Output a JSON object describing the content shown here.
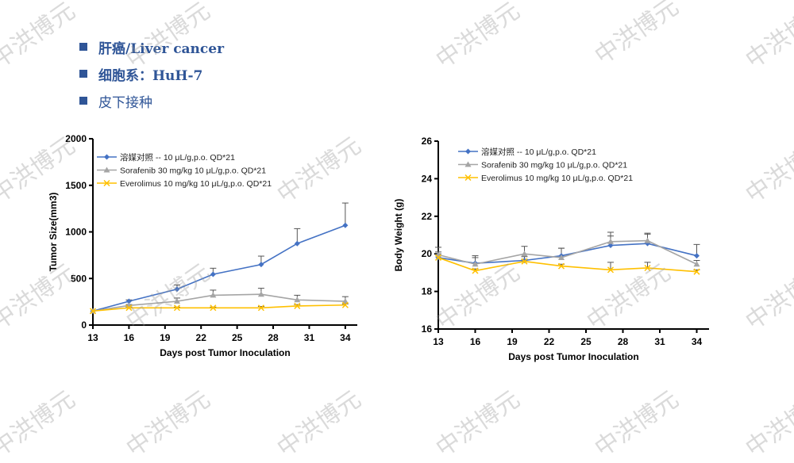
{
  "header": {
    "items": [
      "肝癌/Liver cancer",
      "细胞系：HuH-7",
      "皮下接种"
    ],
    "bullet_color": "#2f5597"
  },
  "watermark": "中洪博元",
  "chart_data": [
    {
      "type": "line",
      "title": "",
      "xlabel": "Days post Tumor Inoculation",
      "ylabel": "Tumor Size(mm3)",
      "xlim": [
        13,
        35
      ],
      "ylim": [
        0,
        2000
      ],
      "xticks": [
        13,
        16,
        19,
        22,
        25,
        28,
        31,
        34
      ],
      "yticks": [
        0,
        500,
        1000,
        1500,
        2000
      ],
      "legend": "top-left",
      "x": [
        13,
        16,
        20,
        23,
        27,
        30,
        34
      ],
      "series": [
        {
          "name": "溶媒对照 -- 10 μL/g,p.o. QD*21",
          "color": "#4472c4",
          "marker": "diamond",
          "values": [
            150,
            255,
            385,
            545,
            650,
            875,
            1070
          ],
          "error": [
            0,
            15,
            45,
            65,
            90,
            160,
            240
          ]
        },
        {
          "name": "Sorafenib 30 mg/kg 10 μL/g,p.o. QD*21",
          "color": "#a5a5a5",
          "marker": "triangle",
          "values": [
            150,
            210,
            255,
            320,
            330,
            270,
            255
          ],
          "error": [
            0,
            10,
            35,
            55,
            65,
            50,
            50
          ]
        },
        {
          "name": "Everolimus 10 mg/kg 10 μL/g,p.o. QD*21",
          "color": "#ffc000",
          "marker": "x",
          "values": [
            150,
            185,
            185,
            185,
            185,
            205,
            215
          ],
          "error": [
            0,
            10,
            8,
            8,
            15,
            15,
            12
          ]
        }
      ]
    },
    {
      "type": "line",
      "title": "",
      "xlabel": "Days post Tumor Inoculation",
      "ylabel": "Body Weight (g)",
      "xlim": [
        13,
        35
      ],
      "ylim": [
        16,
        26
      ],
      "xticks": [
        13,
        16,
        19,
        22,
        25,
        28,
        31,
        34
      ],
      "yticks": [
        16,
        18,
        20,
        22,
        24,
        26
      ],
      "legend": "top-left",
      "x": [
        13,
        16,
        20,
        23,
        27,
        30,
        34
      ],
      "series": [
        {
          "name": "溶媒对照 -- 10 μL/g,p.o. QD*21",
          "color": "#4472c4",
          "marker": "diamond",
          "values": [
            19.8,
            19.5,
            19.65,
            19.9,
            20.45,
            20.55,
            19.9
          ],
          "error": [
            0.3,
            0.3,
            0.2,
            0.4,
            0.5,
            0.5,
            0.6
          ]
        },
        {
          "name": "Sorafenib 30 mg/kg 10 μL/g,p.o. QD*21",
          "color": "#a5a5a5",
          "marker": "triangle",
          "values": [
            19.95,
            19.45,
            20.0,
            19.8,
            20.65,
            20.7,
            19.45
          ],
          "error": [
            0.4,
            0.45,
            0.4,
            0.5,
            0.5,
            0.4,
            0.2
          ]
        },
        {
          "name": "Everolimus 10 mg/kg 10 μL/g,p.o. QD*21",
          "color": "#ffc000",
          "marker": "x",
          "values": [
            19.8,
            19.1,
            19.6,
            19.35,
            19.15,
            19.25,
            19.05
          ],
          "error": [
            0.2,
            0.1,
            0.1,
            0.1,
            0.4,
            0.3,
            0.1
          ]
        }
      ]
    }
  ]
}
